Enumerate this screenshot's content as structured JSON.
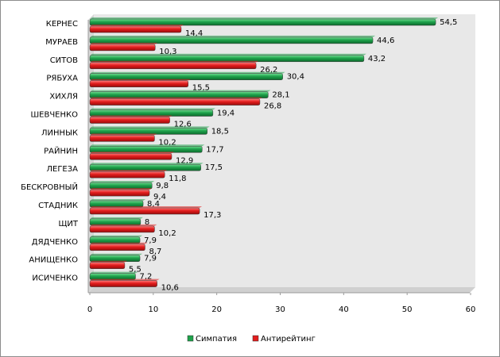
{
  "chart_data": {
    "type": "bar",
    "orientation": "horizontal",
    "categories": [
      "КЕРНЕС",
      "МУРАЕВ",
      "СИТОВ",
      "РЯБУХА",
      "ХИХЛЯ",
      "ШЕВЧЕНКО",
      "ЛИННЫК",
      "РАЙНИН",
      "ЛЕГЕЗА",
      "БЕСКРОВНЫЙ",
      "СТАДНИК",
      "ЩИТ",
      "ДЯДЧЕНКО",
      "АНИЩЕНКО",
      "ИСИЧЕНКО"
    ],
    "series": [
      {
        "name": "Симпатия",
        "color": "#1ea24b",
        "values": [
          54.5,
          44.6,
          43.2,
          30.4,
          28.1,
          19.4,
          18.5,
          17.7,
          17.5,
          9.8,
          8.4,
          8,
          7.9,
          7.9,
          7.2
        ],
        "labels": [
          "54,5",
          "44,6",
          "43,2",
          "30,4",
          "28,1",
          "19,4",
          "18,5",
          "17,7",
          "17,5",
          "9,8",
          "8,4",
          "8",
          "7,9",
          "7,9",
          "7,2"
        ]
      },
      {
        "name": "Антирейтинг",
        "color": "#e21d1d",
        "values": [
          14.4,
          10.3,
          26.2,
          15.5,
          26.8,
          12.6,
          10.2,
          12.9,
          11.8,
          9.4,
          17.3,
          10.2,
          8.7,
          5.5,
          10.6
        ],
        "labels": [
          "14,4",
          "10,3",
          "26,2",
          "15,5",
          "26,8",
          "12,6",
          "10,2",
          "12,9",
          "11,8",
          "9,4",
          "17,3",
          "10,2",
          "8,7",
          "5,5",
          "10,6"
        ]
      }
    ],
    "xlim": [
      0,
      60
    ],
    "ticks": [
      "0",
      "10",
      "20",
      "30",
      "40",
      "50",
      "60"
    ],
    "tick_values": [
      0,
      10,
      20,
      30,
      40,
      50,
      60
    ],
    "legend_position": "bottom",
    "grid": false,
    "plot_background": "#e6e6e6"
  }
}
